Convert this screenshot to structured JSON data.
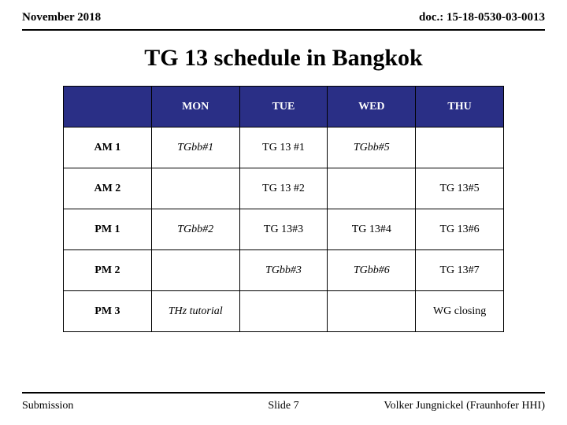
{
  "header": {
    "left": "November 2018",
    "right": "doc.: 15-18-0530-03-0013"
  },
  "title": "TG 13 schedule in Bangkok",
  "table": {
    "header_bg": "#2a2f86",
    "header_fg": "#ffffff",
    "days": [
      "MON",
      "TUE",
      "WED",
      "THU"
    ],
    "rows": [
      {
        "label": "AM 1",
        "cells": [
          {
            "text": "TGbb#1",
            "italic": true
          },
          {
            "text": "TG 13 #1",
            "italic": false
          },
          {
            "text": "TGbb#5",
            "italic": true
          },
          {
            "text": "",
            "italic": false
          }
        ]
      },
      {
        "label": "AM 2",
        "cells": [
          {
            "text": "",
            "italic": false
          },
          {
            "text": "TG 13 #2",
            "italic": false
          },
          {
            "text": "",
            "italic": false
          },
          {
            "text": "TG 13#5",
            "italic": false
          }
        ]
      },
      {
        "label": "PM 1",
        "cells": [
          {
            "text": "TGbb#2",
            "italic": true
          },
          {
            "text": "TG 13#3",
            "italic": false
          },
          {
            "text": "TG 13#4",
            "italic": false
          },
          {
            "text": "TG 13#6",
            "italic": false
          }
        ]
      },
      {
        "label": "PM 2",
        "cells": [
          {
            "text": "",
            "italic": false
          },
          {
            "text": "TGbb#3",
            "italic": true
          },
          {
            "text": "TGbb#6",
            "italic": true
          },
          {
            "text": "TG 13#7",
            "italic": false
          }
        ]
      },
      {
        "label": "PM 3",
        "cells": [
          {
            "text": "THz tutorial",
            "italic": true
          },
          {
            "text": "",
            "italic": false
          },
          {
            "text": "",
            "italic": false
          },
          {
            "text": "WG closing",
            "italic": false
          }
        ]
      }
    ]
  },
  "footer": {
    "left": "Submission",
    "center": "Slide 7",
    "right": "Volker Jungnickel (Fraunhofer HHI)"
  }
}
